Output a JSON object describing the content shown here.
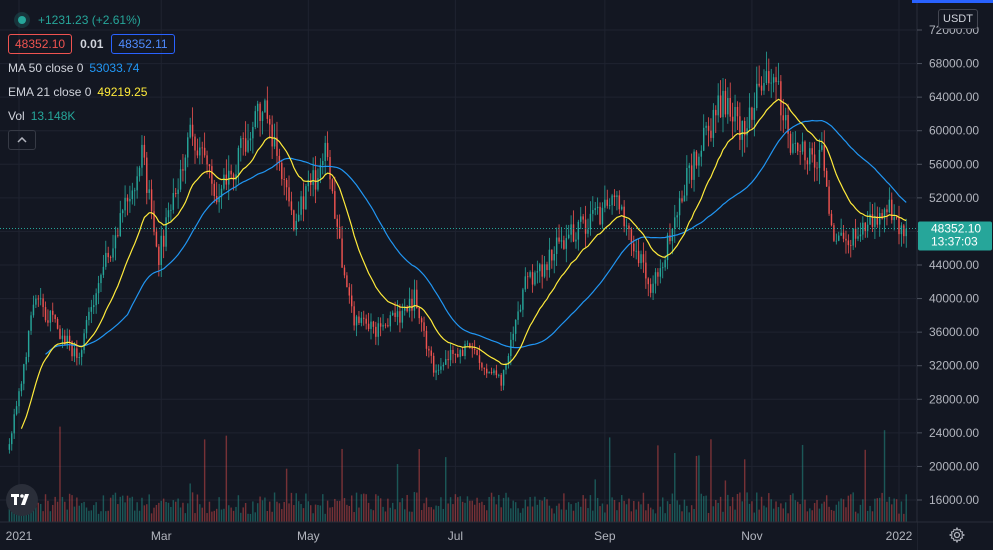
{
  "header": {
    "change": "+1231.23 (+2.61%)",
    "bid": "48352.10",
    "spread": "0.01",
    "ask": "48352.11",
    "collapse_icon": "chevron-up-icon"
  },
  "indicators": {
    "ma": {
      "name": "MA 50 close 0",
      "value": "53033.74",
      "color": "#2196f3"
    },
    "ema": {
      "name": "EMA 21 close 0",
      "value": "49219.25",
      "color": "#ffeb3b"
    },
    "vol": {
      "name": "Vol",
      "value": "13.148K"
    }
  },
  "currency": "USDT",
  "price_label": {
    "price": "48352.10",
    "countdown": "13:37:03"
  },
  "chart_data": {
    "type": "candlestick",
    "ylim": [
      12000,
      73000
    ],
    "yticks": [
      "16000.00",
      "20000.00",
      "24000.00",
      "28000.00",
      "32000.00",
      "36000.00",
      "40000.00",
      "44000.00",
      "48000.00",
      "52000.00",
      "56000.00",
      "60000.00",
      "64000.00",
      "68000.00",
      "72000.00"
    ],
    "xticks": [
      "2021",
      "Mar",
      "May",
      "Jul",
      "Sep",
      "Nov",
      "2022"
    ],
    "close_anchors": [
      [
        "2020-12-28",
        23000
      ],
      [
        "2021-01-08",
        40000
      ],
      [
        "2021-01-25",
        33000
      ],
      [
        "2021-02-08",
        46000
      ],
      [
        "2021-02-21",
        57000
      ],
      [
        "2021-02-28",
        45000
      ],
      [
        "2021-03-13",
        60000
      ],
      [
        "2021-03-25",
        52000
      ],
      [
        "2021-04-13",
        63500
      ],
      [
        "2021-04-25",
        49000
      ],
      [
        "2021-05-08",
        57000
      ],
      [
        "2021-05-19",
        38000
      ],
      [
        "2021-06-01",
        36000
      ],
      [
        "2021-06-14",
        40000
      ],
      [
        "2021-06-22",
        32000
      ],
      [
        "2021-07-07",
        34000
      ],
      [
        "2021-07-20",
        30000
      ],
      [
        "2021-07-30",
        41500
      ],
      [
        "2021-08-15",
        47000
      ],
      [
        "2021-09-06",
        51500
      ],
      [
        "2021-09-21",
        41000
      ],
      [
        "2021-10-06",
        55000
      ],
      [
        "2021-10-20",
        64000
      ],
      [
        "2021-10-28",
        60000
      ],
      [
        "2021-11-09",
        67500
      ],
      [
        "2021-11-18",
        57000
      ],
      [
        "2021-11-30",
        57000
      ],
      [
        "2021-12-04",
        48000
      ],
      [
        "2021-12-15",
        47500
      ],
      [
        "2021-12-27",
        51000
      ],
      [
        "2022-01-01",
        47500
      ],
      [
        "2022-01-04",
        48352.1
      ]
    ],
    "series": [
      {
        "name": "MA 50 close 0",
        "last": 53033.74,
        "color": "#2196f3"
      },
      {
        "name": "EMA 21 close 0",
        "last": 49219.25,
        "color": "#ffeb3b"
      },
      {
        "name": "Vol",
        "last": "13.148K"
      }
    ],
    "last_price": 48352.1,
    "up_color": "#26a69a",
    "down_color": "#ef5350"
  }
}
